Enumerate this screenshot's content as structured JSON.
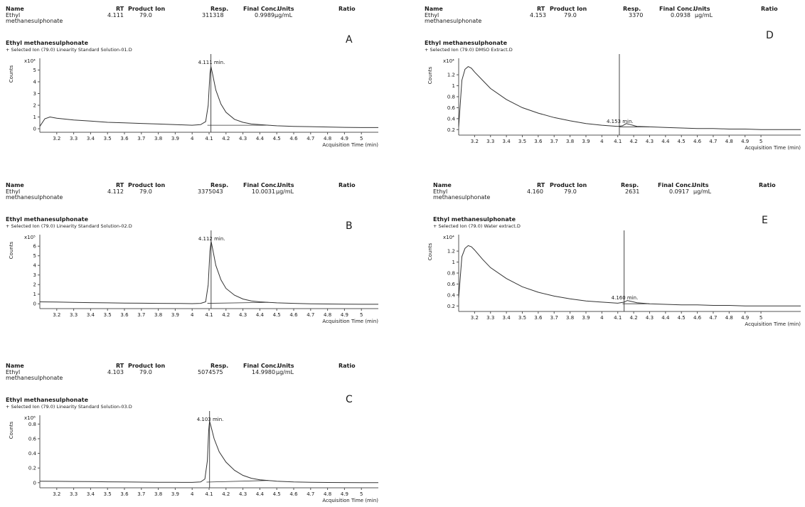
{
  "header_labels": {
    "name": "Name",
    "rt": "RT",
    "product_ion": "Product Ion",
    "resp": "Resp.",
    "final_conc": "Final Conc.",
    "units": "Units",
    "ratio": "Ratio"
  },
  "compound_line1": "Ethyl",
  "compound_line2": "methanesulphonate",
  "compound_title": "Ethyl methanesulphonate",
  "x_axis_label": "Acquisition Time (min)",
  "y_axis_label": "Counts",
  "colors": {
    "trace": "#333333",
    "axis": "#555555",
    "text": "#1a1a1a"
  },
  "chart_data": [
    {
      "id": "A",
      "type": "line",
      "letter": "A",
      "rt": "4.111",
      "product_ion": "79.0",
      "resp": "311318",
      "final_conc": "0.9989",
      "units": "µg/mL",
      "subtitle": "+ Selected Ion (79.0) Linearity Standard Solution-01.D",
      "exponent_label": "x10⁴",
      "peak_label": "4.111 min.",
      "xlim": [
        3.1,
        5.1
      ],
      "ylim": [
        -0.3,
        6.0
      ],
      "xticks": [
        3.2,
        3.3,
        3.4,
        3.5,
        3.6,
        3.7,
        3.8,
        3.9,
        4,
        4.1,
        4.2,
        4.3,
        4.4,
        4.5,
        4.6,
        4.7,
        4.8,
        4.9,
        5
      ],
      "yticks": [
        0,
        1,
        2,
        3,
        4,
        5
      ],
      "x": [
        3.1,
        3.13,
        3.16,
        3.2,
        3.3,
        3.4,
        3.5,
        3.6,
        3.7,
        3.8,
        3.9,
        4.0,
        4.05,
        4.08,
        4.095,
        4.105,
        4.111,
        4.12,
        4.14,
        4.17,
        4.2,
        4.25,
        4.3,
        4.35,
        4.4,
        4.45,
        4.5,
        4.6,
        4.7,
        4.8,
        4.9,
        5.0,
        5.1
      ],
      "y": [
        0.2,
        0.85,
        1.0,
        0.9,
        0.75,
        0.65,
        0.55,
        0.5,
        0.45,
        0.4,
        0.35,
        0.3,
        0.35,
        0.6,
        2.0,
        4.7,
        5.3,
        4.7,
        3.3,
        2.1,
        1.4,
        0.8,
        0.55,
        0.4,
        0.35,
        0.3,
        0.25,
        0.2,
        0.18,
        0.15,
        0.12,
        0.1,
        0.1
      ],
      "baseline_x": [
        4.09,
        4.45
      ],
      "baseline_y": [
        0.3,
        0.3
      ],
      "marker_x": 4.111
    },
    {
      "id": "B",
      "type": "line",
      "letter": "B",
      "rt": "4.112",
      "product_ion": "79.0",
      "resp": "3375043",
      "final_conc": "10.0031",
      "units": "µg/mL",
      "subtitle": "+ Selected Ion (79.0) Linearity Standard Solution-02.D",
      "exponent_label": "x10⁵",
      "peak_label": "4.112 min.",
      "xlim": [
        3.1,
        5.1
      ],
      "ylim": [
        -0.5,
        7.2
      ],
      "xticks": [
        3.2,
        3.3,
        3.4,
        3.5,
        3.6,
        3.7,
        3.8,
        3.9,
        4,
        4.1,
        4.2,
        4.3,
        4.4,
        4.5,
        4.6,
        4.7,
        4.8,
        4.9,
        5
      ],
      "yticks": [
        0,
        1,
        2,
        3,
        4,
        5,
        6
      ],
      "x": [
        3.1,
        3.2,
        3.3,
        3.4,
        3.5,
        3.6,
        3.7,
        3.8,
        3.9,
        4.0,
        4.05,
        4.08,
        4.095,
        4.105,
        4.112,
        4.12,
        4.14,
        4.17,
        4.2,
        4.25,
        4.3,
        4.35,
        4.4,
        4.5,
        4.6,
        4.7,
        4.8,
        4.9,
        5.0,
        5.1
      ],
      "y": [
        0.2,
        0.18,
        0.15,
        0.12,
        0.1,
        0.08,
        0.06,
        0.05,
        0.04,
        0.02,
        0.05,
        0.2,
        2.0,
        5.5,
        6.5,
        5.8,
        4.0,
        2.5,
        1.6,
        0.9,
        0.5,
        0.3,
        0.2,
        0.1,
        0.05,
        0.0,
        -0.02,
        -0.03,
        -0.05,
        -0.05
      ],
      "baseline_x": [
        4.09,
        4.45
      ],
      "baseline_y": [
        0.05,
        0.15
      ],
      "marker_x": 4.112
    },
    {
      "id": "C",
      "type": "line",
      "letter": "C",
      "rt": "4.103",
      "product_ion": "79.0",
      "resp": "5074575",
      "final_conc": "14.9980",
      "units": "µg/mL",
      "subtitle": "+ Selected Ion (79.0) Linearity Standard Solution-03.D",
      "exponent_label": "x10⁶",
      "peak_label": "4.103 min.",
      "xlim": [
        3.1,
        5.1
      ],
      "ylim": [
        -0.07,
        0.92
      ],
      "xticks": [
        3.2,
        3.3,
        3.4,
        3.5,
        3.6,
        3.7,
        3.8,
        3.9,
        4,
        4.1,
        4.2,
        4.3,
        4.4,
        4.5,
        4.6,
        4.7,
        4.8,
        4.9,
        5
      ],
      "yticks": [
        0,
        0.2,
        0.4,
        0.6,
        0.8
      ],
      "ytick_labels": [
        "0",
        "0.2",
        "0.4",
        "0.6",
        "0.8"
      ],
      "x": [
        3.1,
        3.2,
        3.3,
        3.4,
        3.5,
        3.6,
        3.7,
        3.8,
        3.9,
        4.0,
        4.05,
        4.075,
        4.09,
        4.098,
        4.103,
        4.11,
        4.13,
        4.16,
        4.2,
        4.25,
        4.3,
        4.35,
        4.4,
        4.5,
        4.6,
        4.7,
        4.8,
        4.9,
        5.0,
        5.1
      ],
      "y": [
        0.02,
        0.018,
        0.016,
        0.014,
        0.012,
        0.01,
        0.008,
        0.006,
        0.005,
        0.004,
        0.01,
        0.05,
        0.3,
        0.72,
        0.84,
        0.78,
        0.6,
        0.42,
        0.28,
        0.17,
        0.1,
        0.06,
        0.04,
        0.02,
        0.01,
        0.005,
        0.003,
        0.002,
        0.0,
        0.0
      ],
      "baseline_x": [
        4.085,
        4.45
      ],
      "baseline_y": [
        0.008,
        0.03
      ],
      "marker_x": 4.103
    },
    {
      "id": "D",
      "type": "line",
      "letter": "D",
      "rt": "4.153",
      "product_ion": "79.0",
      "resp": "3370",
      "final_conc": "0.0938",
      "units": "µg/mL",
      "subtitle": "+ Selected Ion (79.0) DMSO Extract.D",
      "exponent_label": "x10⁴",
      "peak_label": "4.153 min.",
      "xlim": [
        3.1,
        5.25
      ],
      "ylim": [
        0.1,
        1.5
      ],
      "xticks": [
        3.2,
        3.3,
        3.4,
        3.5,
        3.6,
        3.7,
        3.8,
        3.9,
        4,
        4.1,
        4.2,
        4.3,
        4.4,
        4.5,
        4.6,
        4.7,
        4.8,
        4.9,
        5
      ],
      "yticks": [
        0.2,
        0.4,
        0.6,
        0.8,
        1,
        1.2
      ],
      "ytick_labels": [
        "0.2",
        "0.4",
        "0.6",
        "0.8",
        "1",
        "1.2"
      ],
      "x": [
        3.1,
        3.12,
        3.14,
        3.16,
        3.18,
        3.2,
        3.25,
        3.3,
        3.4,
        3.5,
        3.6,
        3.7,
        3.8,
        3.9,
        4.0,
        4.1,
        4.13,
        4.153,
        4.18,
        4.22,
        4.3,
        4.4,
        4.5,
        4.6,
        4.7,
        4.8,
        4.9,
        5.0,
        5.1,
        5.25
      ],
      "y": [
        0.25,
        1.1,
        1.3,
        1.35,
        1.32,
        1.25,
        1.1,
        0.95,
        0.75,
        0.6,
        0.5,
        0.42,
        0.36,
        0.31,
        0.28,
        0.26,
        0.27,
        0.31,
        0.29,
        0.26,
        0.25,
        0.24,
        0.23,
        0.22,
        0.22,
        0.21,
        0.21,
        0.2,
        0.2,
        0.2
      ],
      "baseline_x": [
        4.11,
        4.3
      ],
      "baseline_y": [
        0.25,
        0.25
      ],
      "marker_x": 4.11
    },
    {
      "id": "E",
      "type": "line",
      "letter": "E",
      "rt": "4.160",
      "product_ion": "79.0",
      "resp": "2631",
      "final_conc": "0.0917",
      "units": "µg/mL",
      "subtitle": "+ Selected Ion (79.0) Water extract.D",
      "exponent_label": "x10⁴",
      "peak_label": "4.160 min.",
      "xlim": [
        3.1,
        5.25
      ],
      "ylim": [
        0.1,
        1.5
      ],
      "xticks": [
        3.2,
        3.3,
        3.4,
        3.5,
        3.6,
        3.7,
        3.8,
        3.9,
        4,
        4.1,
        4.2,
        4.3,
        4.4,
        4.5,
        4.6,
        4.7,
        4.8,
        4.9,
        5
      ],
      "yticks": [
        0.2,
        0.4,
        0.6,
        0.8,
        1,
        1.2
      ],
      "ytick_labels": [
        "0.2",
        "0.4",
        "0.6",
        "0.8",
        "1",
        "1.2"
      ],
      "x": [
        3.1,
        3.12,
        3.14,
        3.16,
        3.18,
        3.2,
        3.25,
        3.3,
        3.4,
        3.5,
        3.6,
        3.7,
        3.8,
        3.9,
        4.0,
        4.1,
        4.14,
        4.16,
        4.19,
        4.22,
        4.3,
        4.4,
        4.5,
        4.6,
        4.7,
        4.8,
        4.9,
        5.0,
        5.1,
        5.25
      ],
      "y": [
        0.35,
        1.1,
        1.25,
        1.3,
        1.28,
        1.22,
        1.05,
        0.9,
        0.7,
        0.55,
        0.45,
        0.38,
        0.33,
        0.29,
        0.27,
        0.25,
        0.27,
        0.3,
        0.28,
        0.26,
        0.24,
        0.23,
        0.22,
        0.22,
        0.21,
        0.21,
        0.2,
        0.2,
        0.2,
        0.2
      ],
      "baseline_x": [
        4.13,
        4.3
      ],
      "baseline_y": [
        0.24,
        0.24
      ],
      "marker_x": 4.14
    }
  ]
}
